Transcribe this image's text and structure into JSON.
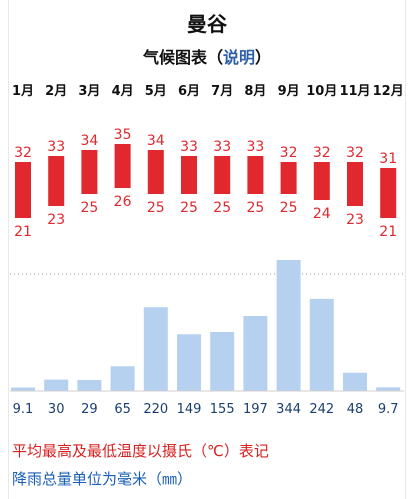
{
  "header": {
    "title": "曼谷",
    "subtitle_text": "气候图表",
    "subtitle_open": "（",
    "subtitle_link": "说明",
    "subtitle_close": "）"
  },
  "chart_data": [
    {
      "type": "bar",
      "categories": [
        "1月",
        "2月",
        "3月",
        "4月",
        "5月",
        "6月",
        "7月",
        "8月",
        "9月",
        "10月",
        "11月",
        "12月"
      ],
      "series": [
        {
          "values_high": [
            32,
            33,
            34,
            35,
            34,
            33,
            33,
            33,
            32,
            32,
            32,
            31
          ]
        },
        {
          "values_low": [
            21,
            23,
            25,
            26,
            25,
            25,
            25,
            25,
            25,
            24,
            23,
            21
          ]
        }
      ],
      "color": "#e0282e"
    },
    {
      "type": "bar",
      "categories": [
        "1月",
        "2月",
        "3月",
        "4月",
        "5月",
        "6月",
        "7月",
        "8月",
        "9月",
        "10月",
        "11月",
        "12月"
      ],
      "values": [
        9.1,
        30,
        29,
        65,
        220,
        149,
        155,
        197,
        344,
        242,
        48,
        9.7
      ],
      "value_labels": [
        "9.1",
        "30",
        "29",
        "65",
        "220",
        "149",
        "155",
        "197",
        "344",
        "242",
        "48",
        "9.7"
      ],
      "color": "#b5d1ef"
    }
  ],
  "legend": {
    "temp_note": "平均最高及最低温度以摄氏（℃）表记",
    "rain_note": "降雨总量单位为毫米（㎜）"
  }
}
